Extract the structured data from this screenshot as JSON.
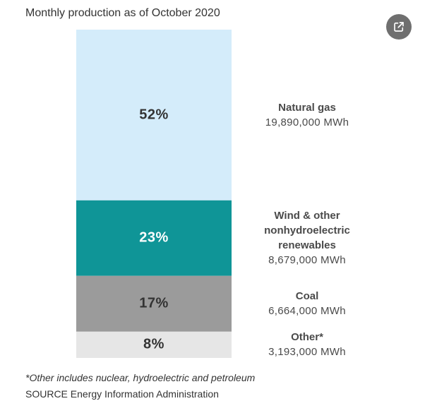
{
  "header": {
    "title": "Monthly production as of October 2020"
  },
  "share": {
    "icon": "share-icon",
    "color": "#6f6f6f"
  },
  "chart_data": {
    "type": "bar",
    "stacked": true,
    "title": "Monthly production as of October 2020",
    "unit": "MWh",
    "segments": [
      {
        "category": "Natural gas",
        "percent": 52,
        "percent_label": "52%",
        "value": 19890000,
        "value_label": "19,890,000 MWh",
        "color": "#d4ecfa",
        "text_color": "#333333"
      },
      {
        "category": "Wind & other nonhydroelectric renewables",
        "percent": 23,
        "percent_label": "23%",
        "value": 8679000,
        "value_label": "8,679,000 MWh",
        "color": "#0f9597",
        "text_color": "#ffffff"
      },
      {
        "category": "Coal",
        "percent": 17,
        "percent_label": "17%",
        "value": 6664000,
        "value_label": "6,664,000 MWh",
        "color": "#9b9b9b",
        "text_color": "#333333"
      },
      {
        "category": "Other*",
        "percent": 8,
        "percent_label": "8%",
        "value": 3193000,
        "value_label": "3,193,000 MWh",
        "color": "#e6e6e6",
        "text_color": "#333333"
      }
    ]
  },
  "footer": {
    "footnote": "*Other includes nuclear, hydroelectric and petroleum",
    "source": "SOURCE Energy Information Administration"
  }
}
